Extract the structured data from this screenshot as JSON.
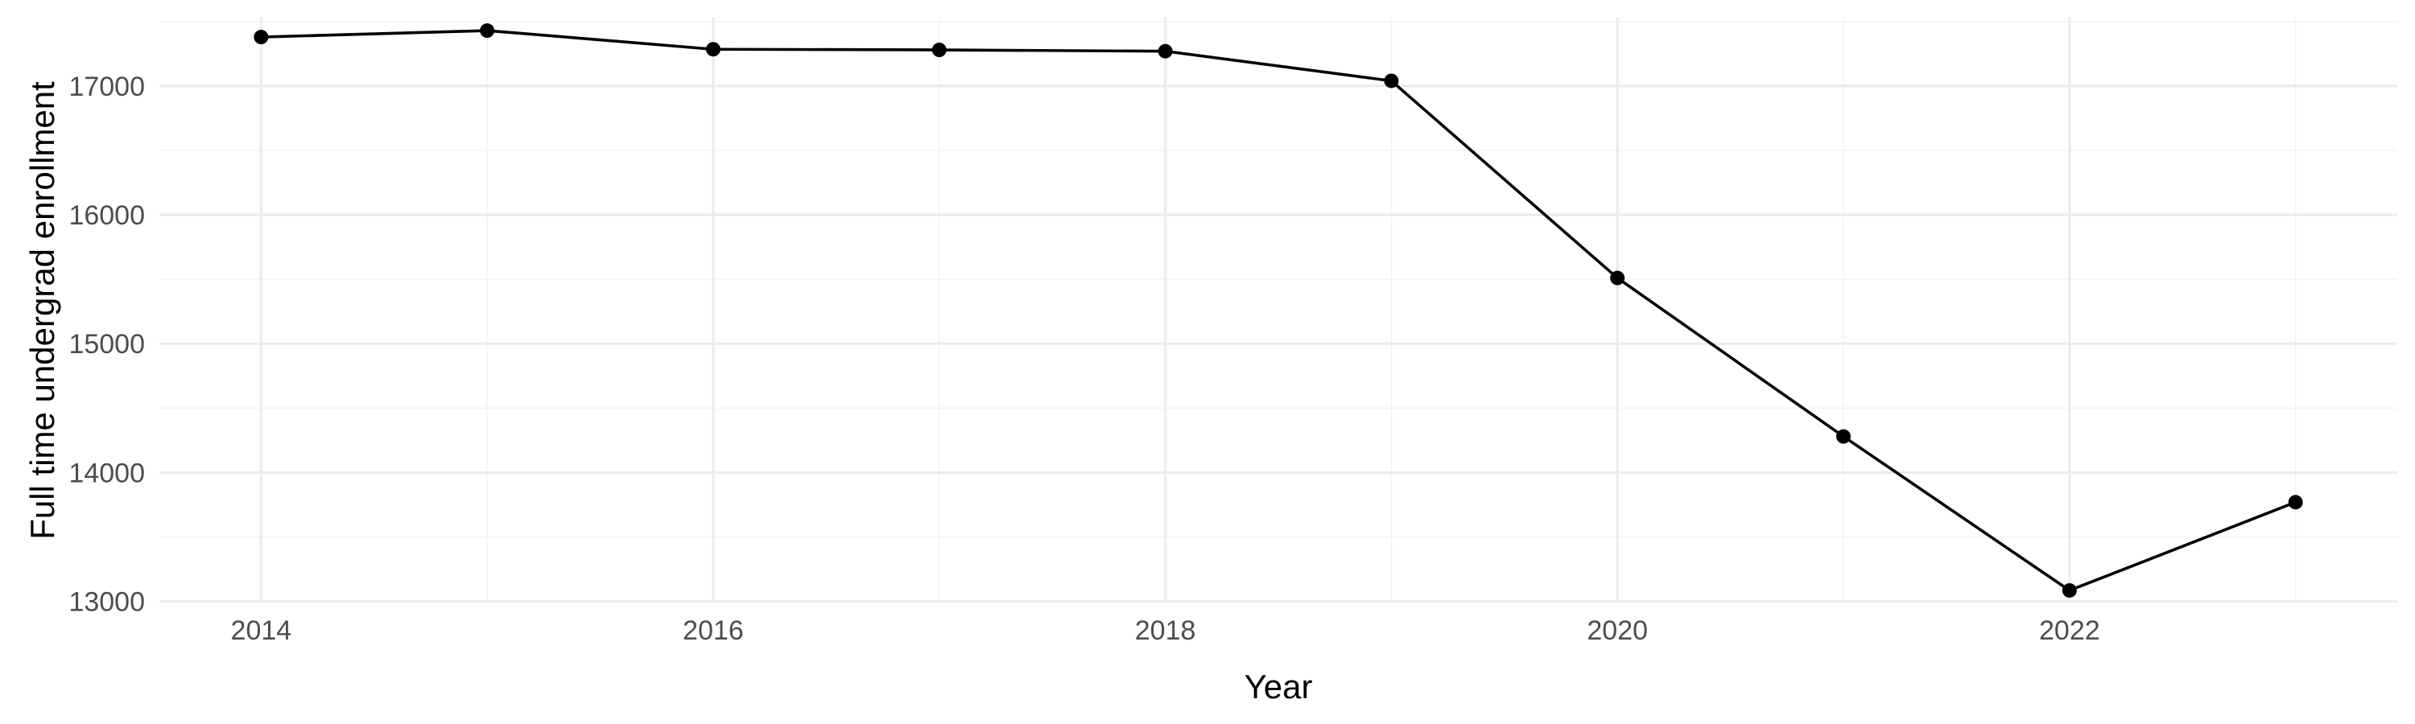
{
  "chart_data": {
    "type": "line",
    "title": "",
    "xlabel": "Year",
    "ylabel": "Full time undergrad enrollment",
    "x": [
      2014,
      2015,
      2016,
      2017,
      2018,
      2019,
      2020,
      2021,
      2022,
      2023
    ],
    "series": [
      {
        "values": [
          17380,
          17430,
          17285,
          17280,
          17270,
          17040,
          15510,
          14280,
          13085,
          13770
        ]
      }
    ],
    "xlim": [
      2013.55,
      2023.45
    ],
    "ylim": [
      12985,
      17530
    ],
    "x_ticks": [
      2014,
      2016,
      2018,
      2020,
      2022
    ],
    "y_ticks": [
      13000,
      14000,
      15000,
      16000,
      17000
    ],
    "x_tick_labels": [
      "2014",
      "2016",
      "2018",
      "2020",
      "2022"
    ],
    "y_tick_labels": [
      "13000",
      "14000",
      "15000",
      "16000",
      "17000"
    ],
    "grid": true,
    "legend": "none",
    "colors": {
      "line": "#000000",
      "grid": "#ebebeb",
      "background": "#ffffff"
    }
  }
}
